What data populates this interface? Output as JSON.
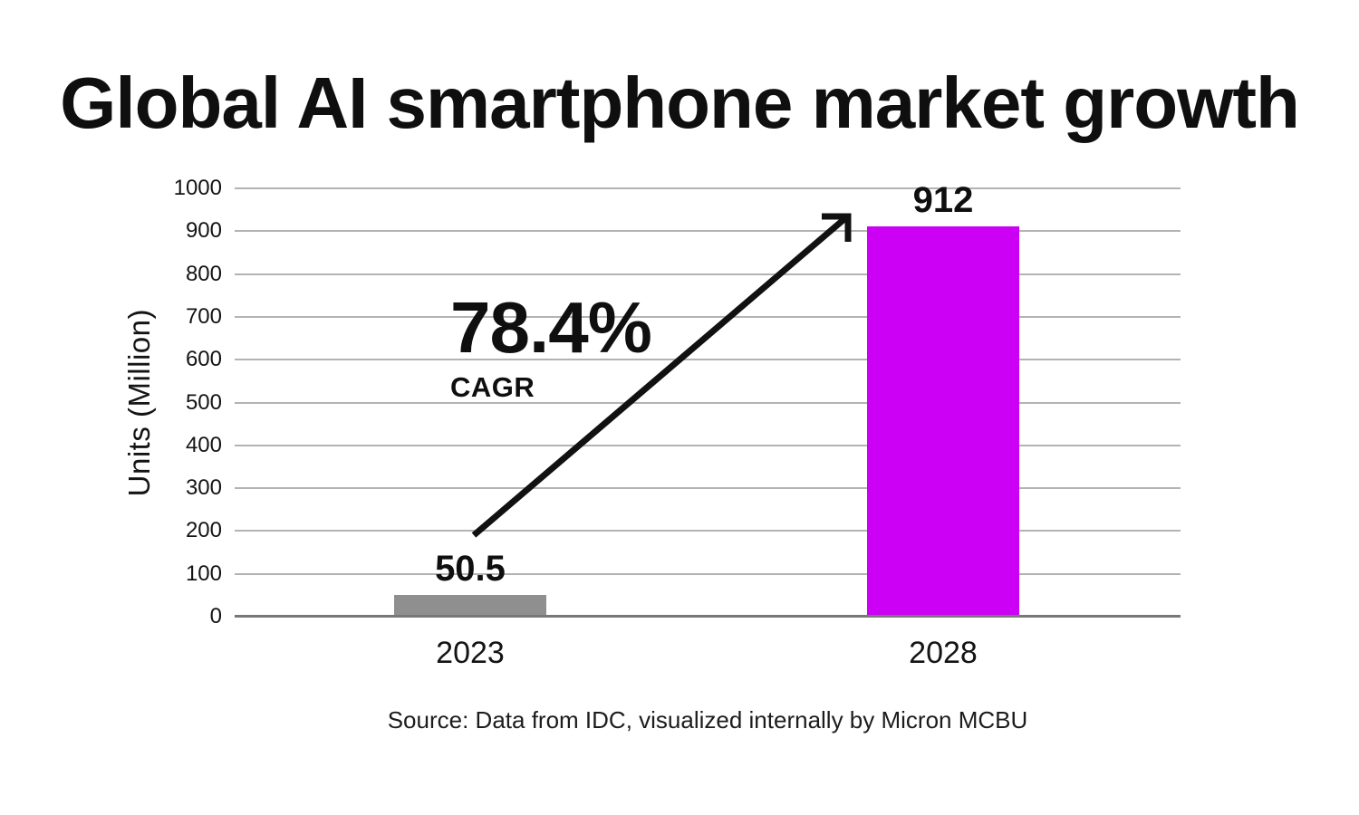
{
  "page": {
    "background": "#ffffff"
  },
  "chart_data": {
    "type": "bar",
    "title": "Global AI smartphone market growth",
    "categories": [
      "2023",
      "2028"
    ],
    "values": [
      50.5,
      912
    ],
    "value_labels": [
      "50.5",
      "912"
    ],
    "bar_colors": [
      "#8f8f8f",
      "#cc00f5"
    ],
    "ylabel": "Units (Million)",
    "ylim": [
      0,
      1000
    ],
    "yticks": [
      0,
      100,
      200,
      300,
      400,
      500,
      600,
      700,
      800,
      900,
      1000
    ],
    "grid": "horizontal",
    "legend_position": "none",
    "annotation": {
      "value": "78.4%",
      "label": "CAGR"
    },
    "arrow": {
      "from": "above 2023 bar (~200 units)",
      "to": "top of 2028 bar (~900 units)"
    },
    "source": "Source: Data from IDC, visualized internally by Micron MCBU",
    "colors": {
      "accent_magenta": "#cc00f5",
      "muted_gray_bar": "#8f8f8f",
      "gridline": "#b3b3b3",
      "axis_baseline": "#787878",
      "text": "#0f0f0f"
    }
  }
}
